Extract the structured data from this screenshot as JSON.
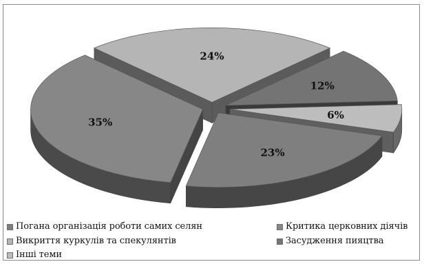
{
  "chart_data": {
    "type": "pie",
    "style": "3d-exploded",
    "categories": [
      "Погана організація роботи самих селян",
      "Критика церковних діячів",
      "Викриття куркулів та спекулянтів",
      "Засудження пияцтва",
      "Інші теми"
    ],
    "values": [
      23,
      35,
      24,
      12,
      6
    ],
    "labels": [
      "23%",
      "35%",
      "24%",
      "12%",
      "6%"
    ],
    "unit": "%",
    "legend_position": "bottom",
    "colors": {
      "Погана організація роботи самих селян": "#7f7f7f",
      "Критика церковних діячів": "#878787",
      "Викриття куркулів та спекулянтів": "#b5b5b5",
      "Засудження пияцтва": "#747474",
      "Інші теми": "#bdbdbd"
    }
  }
}
